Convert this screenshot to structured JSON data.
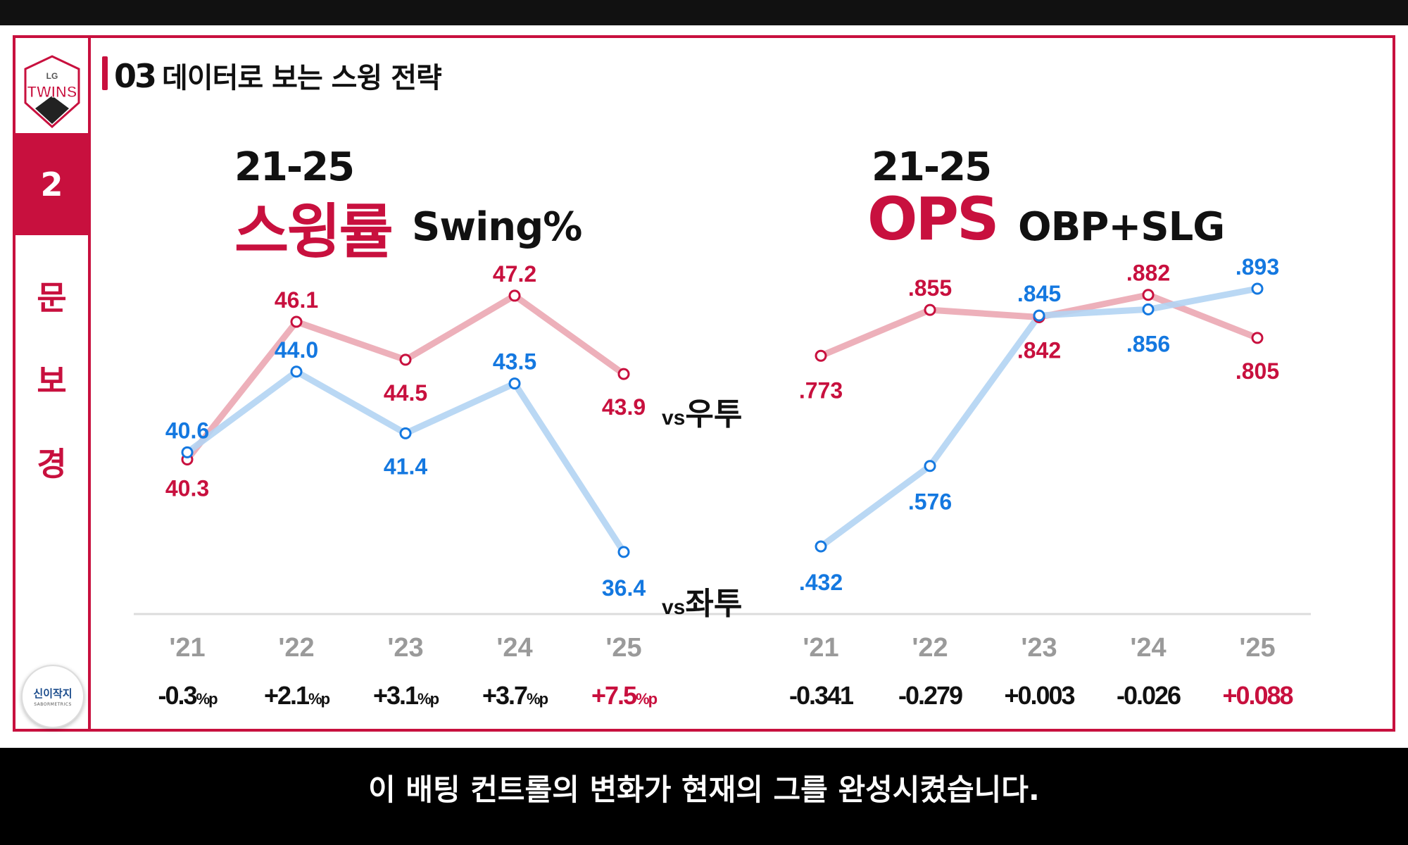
{
  "header": {
    "section_number": "03",
    "section_title": "데이터로 보는 스윙 전략"
  },
  "sidebar": {
    "logo_top": "LG",
    "logo_main": "TWINS",
    "episode": "2",
    "chars": [
      "문",
      "보",
      "경"
    ],
    "badge_main": "신이작지",
    "badge_sub": "SABORMETRICS"
  },
  "left_panel": {
    "years": "21-25",
    "title": "스윙률",
    "subtitle": "Swing%"
  },
  "right_panel": {
    "years": "21-25",
    "title": "OPS",
    "subtitle": "OBP+SLG"
  },
  "subtitle_caption": "이 배팅 컨트롤의 변화가 현재의 그를 완성시켰습니다.",
  "colors": {
    "red": "#c8103e",
    "blue": "#1478e0",
    "red_line": "#eba7b3",
    "blue_line": "#b3d4f3",
    "positive_diff": "#c8103e",
    "frame": "#c8103e"
  },
  "chart_data": [
    {
      "type": "line",
      "title": "21-25 스윙률 Swing%",
      "categories": [
        "'21",
        "'22",
        "'23",
        "'24",
        "'25"
      ],
      "series": [
        {
          "name": "vs우투",
          "color": "red",
          "values": [
            40.3,
            46.1,
            44.5,
            47.2,
            43.9
          ],
          "labels": [
            "40.3",
            "46.1",
            "44.5",
            "47.2",
            "43.9"
          ]
        },
        {
          "name": "vs좌투",
          "color": "blue",
          "values": [
            40.6,
            44.0,
            41.4,
            43.5,
            36.4
          ],
          "labels": [
            "40.6",
            "44.0",
            "41.4",
            "43.5",
            "36.4"
          ]
        }
      ],
      "series_suffix": "vs",
      "series_label_parts": [
        "우투",
        "좌투"
      ],
      "diffs": [
        {
          "value": "-0.3",
          "unit": "%p",
          "highlight": false
        },
        {
          "value": "+2.1",
          "unit": "%p",
          "highlight": false
        },
        {
          "value": "+3.1",
          "unit": "%p",
          "highlight": false
        },
        {
          "value": "+3.7",
          "unit": "%p",
          "highlight": false
        },
        {
          "value": "+7.5",
          "unit": "%p",
          "highlight": true
        }
      ]
    },
    {
      "type": "line",
      "title": "21-25 OPS OBP+SLG",
      "categories": [
        "'21",
        "'22",
        "'23",
        "'24",
        "'25"
      ],
      "series": [
        {
          "name": "vs우투",
          "color": "red",
          "values": [
            0.773,
            0.855,
            0.842,
            0.882,
            0.805
          ],
          "labels": [
            ".773",
            ".855",
            ".842",
            ".882",
            ".805"
          ]
        },
        {
          "name": "vs좌투",
          "color": "blue",
          "values": [
            0.432,
            0.576,
            0.845,
            0.856,
            0.893
          ],
          "labels": [
            ".432",
            ".576",
            ".845",
            ".856",
            ".893"
          ]
        }
      ],
      "diffs": [
        {
          "value": "-0.341",
          "unit": "",
          "highlight": false
        },
        {
          "value": "-0.279",
          "unit": "",
          "highlight": false
        },
        {
          "value": "+0.003",
          "unit": "",
          "highlight": false
        },
        {
          "value": "-0.026",
          "unit": "",
          "highlight": false
        },
        {
          "value": "+0.088",
          "unit": "",
          "highlight": true
        }
      ]
    }
  ]
}
